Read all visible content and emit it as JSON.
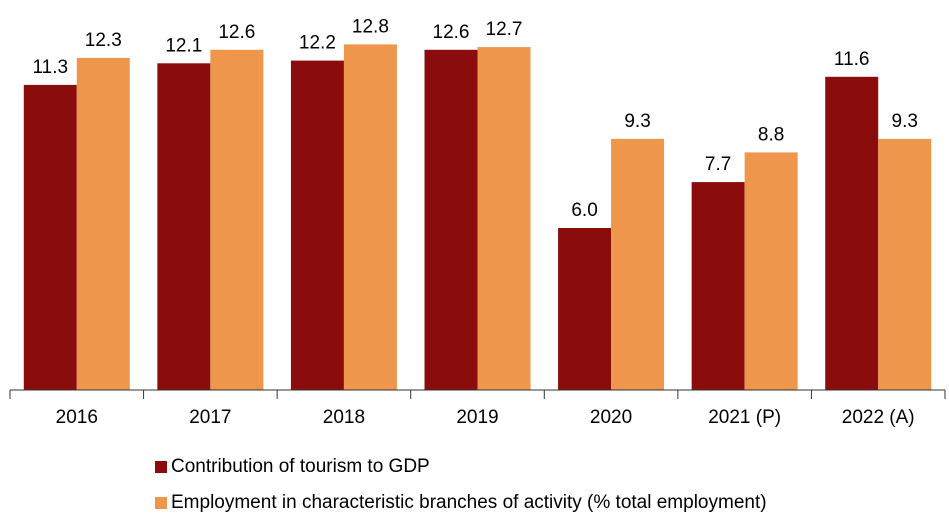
{
  "chart_data": {
    "type": "bar",
    "categories": [
      "2016",
      "2017",
      "2018",
      "2019",
      "2020",
      "2021 (P)",
      "2022 (A)"
    ],
    "series": [
      {
        "name": "Contribution of tourism to GDP",
        "values": [
          11.3,
          12.1,
          12.2,
          12.6,
          6.0,
          7.7,
          11.6
        ],
        "color": "#8b0c0c"
      },
      {
        "name": "Employment in characteristic branches of activity (% total employment)",
        "values": [
          12.3,
          12.6,
          12.8,
          12.7,
          9.3,
          8.8,
          9.3
        ],
        "color": "#ee964b"
      }
    ],
    "ylim": [
      0,
      14
    ],
    "grid": false,
    "legend_placement": "bottom-left",
    "data_labels": true
  }
}
